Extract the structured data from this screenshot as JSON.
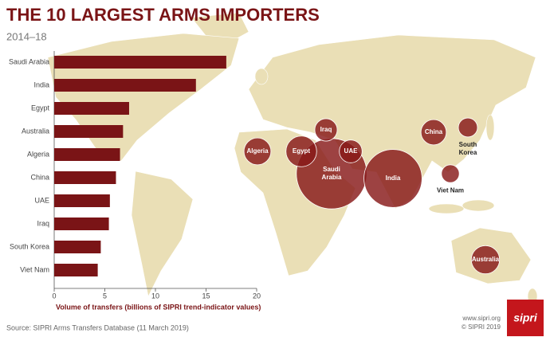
{
  "chart_data": {
    "type": "bar",
    "title": "THE 10 LARGEST ARMS IMPORTERS",
    "subtitle": "2014–18",
    "categories": [
      "Saudi Arabia",
      "India",
      "Egypt",
      "Australia",
      "Algeria",
      "China",
      "UAE",
      "Iraq",
      "South Korea",
      "Viet Nam"
    ],
    "values": [
      17,
      14,
      7.4,
      6.8,
      6.5,
      6.1,
      5.5,
      5.4,
      4.6,
      4.3
    ],
    "color": "#7a1416",
    "xlim": [
      0,
      20
    ],
    "xticks": [
      0,
      5,
      10,
      15,
      20
    ],
    "x_label": "Volume of transfers (billions of SIPRI trend-indicator values)",
    "source": "Source: SIPRI Arms Transfers Database (11 March 2019)",
    "website": "www.sipri.org",
    "copyright": "© SIPRI 2019",
    "logo": "sipri"
  }
}
